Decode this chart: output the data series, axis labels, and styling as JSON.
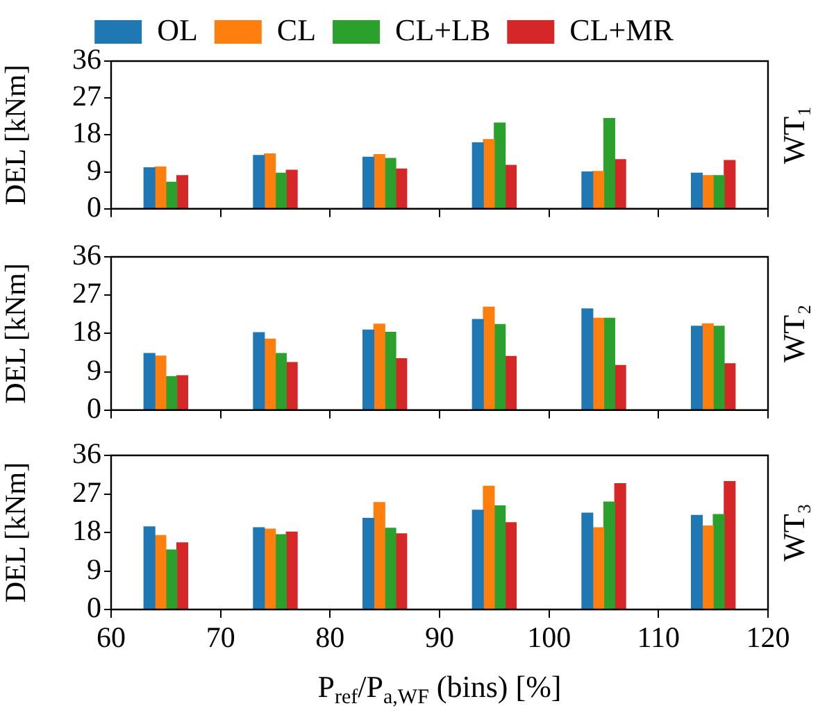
{
  "chart_data": [
    {
      "type": "bar",
      "title": "WT₁",
      "ylabel": "DEL [kNm]",
      "xlim": [
        60,
        120
      ],
      "xticks": [
        60,
        70,
        80,
        90,
        100,
        110,
        120
      ],
      "ylim": [
        0,
        36
      ],
      "yticks": [
        0,
        9,
        18,
        27,
        36
      ],
      "grid": false,
      "legend": "top",
      "tick_labels": "y",
      "series": [
        {
          "name": "OL",
          "color": "#1f77b4",
          "x": [
            63.5,
            73.5,
            83.5,
            93.5,
            103.5,
            113.5
          ],
          "values": [
            10.0,
            13.0,
            12.6,
            16.1,
            9.0,
            8.7
          ]
        },
        {
          "name": "CL",
          "color": "#ff7f0e",
          "x": [
            64.5,
            74.5,
            84.5,
            94.5,
            104.5,
            114.5
          ],
          "values": [
            10.2,
            13.4,
            13.2,
            16.9,
            9.1,
            8.1
          ]
        },
        {
          "name": "CL+LB",
          "color": "#2ca02c",
          "x": [
            65.5,
            75.5,
            85.5,
            95.5,
            105.5,
            115.5
          ],
          "values": [
            6.5,
            8.7,
            12.3,
            20.9,
            22.0,
            8.1
          ]
        },
        {
          "name": "CL+MR",
          "color": "#d62728",
          "x": [
            66.5,
            76.5,
            86.5,
            96.5,
            106.5,
            116.5
          ],
          "values": [
            8.1,
            9.4,
            9.7,
            10.6,
            12.0,
            11.8
          ]
        }
      ]
    },
    {
      "type": "bar",
      "title": "WT₂",
      "ylabel": "DEL [kNm]",
      "xlim": [
        60,
        120
      ],
      "xticks": [
        60,
        70,
        80,
        90,
        100,
        110,
        120
      ],
      "ylim": [
        0,
        36
      ],
      "yticks": [
        0,
        9,
        18,
        27,
        36
      ],
      "grid": false,
      "tick_labels": "y",
      "series": [
        {
          "color": "#1f77b4",
          "x": [
            63.5,
            73.5,
            83.5,
            93.5,
            103.5,
            113.5
          ],
          "values": [
            13.3,
            18.2,
            18.8,
            21.3,
            23.8,
            19.7
          ]
        },
        {
          "color": "#ff7f0e",
          "x": [
            64.5,
            74.5,
            84.5,
            94.5,
            104.5,
            114.5
          ],
          "values": [
            12.7,
            16.7,
            20.2,
            24.2,
            21.6,
            20.3
          ]
        },
        {
          "color": "#2ca02c",
          "x": [
            65.5,
            75.5,
            85.5,
            95.5,
            105.5,
            115.5
          ],
          "values": [
            7.9,
            13.3,
            18.3,
            20.1,
            21.6,
            19.7
          ]
        },
        {
          "color": "#d62728",
          "x": [
            66.5,
            76.5,
            86.5,
            96.5,
            106.5,
            116.5
          ],
          "values": [
            8.1,
            11.2,
            12.1,
            12.6,
            10.5,
            10.9
          ]
        }
      ]
    },
    {
      "type": "bar",
      "title": "WT₃",
      "ylabel": "DEL [kNm]",
      "xlabel": "P$_{ref}$/P$_{a,WF}$ (bins) [%]",
      "xlim": [
        60,
        120
      ],
      "xticks": [
        60,
        70,
        80,
        90,
        100,
        110,
        120
      ],
      "ylim": [
        0,
        36
      ],
      "yticks": [
        0,
        9,
        18,
        27,
        36
      ],
      "grid": false,
      "series": [
        {
          "color": "#1f77b4",
          "x": [
            63.5,
            73.5,
            83.5,
            93.5,
            103.5,
            113.5
          ],
          "values": [
            19.3,
            19.1,
            21.3,
            23.2,
            22.5,
            22.0
          ]
        },
        {
          "color": "#ff7f0e",
          "x": [
            64.5,
            74.5,
            84.5,
            94.5,
            104.5,
            114.5
          ],
          "values": [
            17.3,
            18.8,
            25.0,
            28.8,
            19.1,
            19.5
          ]
        },
        {
          "color": "#2ca02c",
          "x": [
            65.5,
            75.5,
            85.5,
            95.5,
            105.5,
            115.5
          ],
          "values": [
            13.9,
            17.5,
            19.0,
            24.2,
            25.1,
            22.2
          ]
        },
        {
          "color": "#d62728",
          "x": [
            66.5,
            76.5,
            86.5,
            96.5,
            106.5,
            116.5
          ],
          "values": [
            15.6,
            18.1,
            17.7,
            20.3,
            29.4,
            29.9
          ]
        }
      ]
    }
  ]
}
